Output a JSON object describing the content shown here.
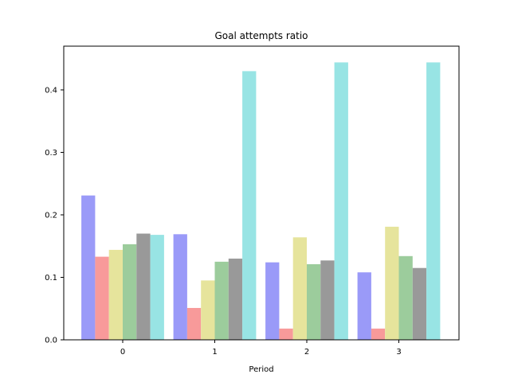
{
  "chart_data": {
    "type": "bar",
    "title": "Goal attempts ratio",
    "xlabel": "Period",
    "ylabel": "",
    "categories": [
      "0",
      "1",
      "2",
      "3"
    ],
    "ylim": [
      0,
      0.47
    ],
    "yticks": [
      "0.0",
      "0.1",
      "0.2",
      "0.3",
      "0.4"
    ],
    "grid": false,
    "legend": "none",
    "series": [
      {
        "color": "#9a9af8",
        "values": [
          0.231,
          0.169,
          0.124,
          0.108
        ]
      },
      {
        "color": "#f89a9a",
        "values": [
          0.133,
          0.051,
          0.018,
          0.018
        ]
      },
      {
        "color": "#e6e49c",
        "values": [
          0.144,
          0.095,
          0.164,
          0.181
        ]
      },
      {
        "color": "#9ccc9c",
        "values": [
          0.153,
          0.125,
          0.121,
          0.134
        ]
      },
      {
        "color": "#999999",
        "values": [
          0.17,
          0.13,
          0.127,
          0.115
        ]
      },
      {
        "color": "#98e4e4",
        "values": [
          0.168,
          0.43,
          0.444,
          0.444
        ]
      }
    ]
  }
}
